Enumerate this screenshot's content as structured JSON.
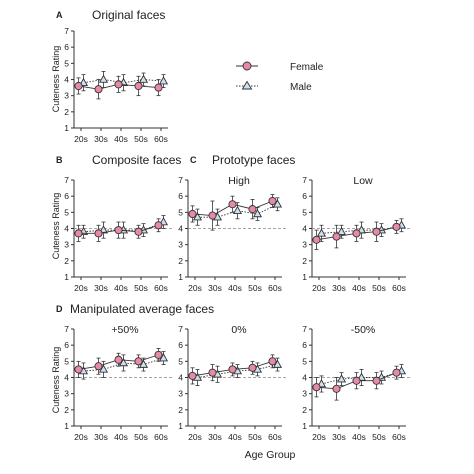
{
  "colors": {
    "female_fill": "#e88aa6",
    "female_stroke": "#333333",
    "male_fill": "#cfe0f3",
    "male_stroke": "#333333",
    "axis": "#333333",
    "reference_line": "#888888"
  },
  "icons": {
    "female_marker": "circle",
    "male_marker": "triangle"
  },
  "labels": {
    "ylabel": "Cuteness Rating",
    "xlabel": "Age Group"
  },
  "sections": {
    "A": {
      "letter": "A",
      "title": "Original faces"
    },
    "B": {
      "letter": "B",
      "title": "Composite faces"
    },
    "C": {
      "letter": "C",
      "title": "Prototype faces"
    },
    "D": {
      "letter": "D",
      "title": "Manipulated average faces"
    }
  },
  "legend": {
    "female": "Female",
    "male": "Male"
  },
  "chart_data": [
    {
      "id": "A",
      "type": "line",
      "title": "",
      "categories": [
        "20s",
        "30s",
        "40s",
        "50s",
        "60s"
      ],
      "ylim": [
        1,
        7
      ],
      "yticks": [
        1,
        2,
        3,
        4,
        5,
        6,
        7
      ],
      "reference_line": null,
      "series": [
        {
          "name": "Female",
          "values": [
            3.6,
            3.4,
            3.7,
            3.6,
            3.5
          ],
          "errors": [
            0.5,
            0.6,
            0.5,
            0.6,
            0.5
          ]
        },
        {
          "name": "Male",
          "values": [
            3.8,
            4.0,
            3.8,
            4.0,
            3.9
          ],
          "errors": [
            0.5,
            0.5,
            0.5,
            0.4,
            0.4
          ]
        }
      ]
    },
    {
      "id": "B",
      "type": "line",
      "title": "",
      "categories": [
        "20s",
        "30s",
        "40s",
        "50s",
        "60s"
      ],
      "ylim": [
        1,
        7
      ],
      "yticks": [
        1,
        2,
        3,
        4,
        5,
        6,
        7
      ],
      "reference_line": 4,
      "series": [
        {
          "name": "Female",
          "values": [
            3.7,
            3.7,
            3.9,
            3.8,
            4.2
          ],
          "errors": [
            0.5,
            0.5,
            0.5,
            0.4,
            0.4
          ]
        },
        {
          "name": "Male",
          "values": [
            3.8,
            3.9,
            3.9,
            3.9,
            4.4
          ],
          "errors": [
            0.4,
            0.5,
            0.5,
            0.4,
            0.4
          ]
        }
      ]
    },
    {
      "id": "C-high",
      "type": "line",
      "title": "High",
      "categories": [
        "20s",
        "30s",
        "40s",
        "50s",
        "60s"
      ],
      "ylim": [
        1,
        7
      ],
      "yticks": [
        1,
        2,
        3,
        4,
        5,
        6,
        7
      ],
      "reference_line": 4,
      "series": [
        {
          "name": "Female",
          "values": [
            4.9,
            4.8,
            5.5,
            5.2,
            5.7
          ],
          "errors": [
            0.5,
            0.9,
            0.5,
            0.6,
            0.4
          ]
        },
        {
          "name": "Male",
          "values": [
            4.7,
            4.7,
            5.1,
            4.9,
            5.5
          ],
          "errors": [
            0.5,
            0.5,
            0.5,
            0.4,
            0.4
          ]
        }
      ]
    },
    {
      "id": "C-low",
      "type": "line",
      "title": "Low",
      "categories": [
        "20s",
        "30s",
        "40s",
        "50s",
        "60s"
      ],
      "ylim": [
        1,
        7
      ],
      "yticks": [
        1,
        2,
        3,
        4,
        5,
        6,
        7
      ],
      "reference_line": 4,
      "series": [
        {
          "name": "Female",
          "values": [
            3.3,
            3.5,
            3.7,
            3.8,
            4.1
          ],
          "errors": [
            0.6,
            0.7,
            0.5,
            0.6,
            0.4
          ]
        },
        {
          "name": "Male",
          "values": [
            3.7,
            3.8,
            3.9,
            3.9,
            4.2
          ],
          "errors": [
            0.5,
            0.4,
            0.5,
            0.4,
            0.4
          ]
        }
      ]
    },
    {
      "id": "D-plus50",
      "type": "line",
      "title": "+50%",
      "categories": [
        "20s",
        "30s",
        "40s",
        "50s",
        "60s"
      ],
      "ylim": [
        1,
        7
      ],
      "yticks": [
        1,
        2,
        3,
        4,
        5,
        6,
        7
      ],
      "reference_line": 4,
      "series": [
        {
          "name": "Female",
          "values": [
            4.5,
            4.7,
            5.1,
            5.0,
            5.4
          ],
          "errors": [
            0.5,
            0.5,
            0.4,
            0.4,
            0.4
          ]
        },
        {
          "name": "Male",
          "values": [
            4.4,
            4.5,
            4.9,
            4.8,
            5.2
          ],
          "errors": [
            0.5,
            0.5,
            0.5,
            0.4,
            0.4
          ]
        }
      ]
    },
    {
      "id": "D-zero",
      "type": "line",
      "title": "0%",
      "categories": [
        "20s",
        "30s",
        "40s",
        "50s",
        "60s"
      ],
      "ylim": [
        1,
        7
      ],
      "yticks": [
        1,
        2,
        3,
        4,
        5,
        6,
        7
      ],
      "reference_line": 4,
      "series": [
        {
          "name": "Female",
          "values": [
            4.1,
            4.3,
            4.5,
            4.6,
            5.0
          ],
          "errors": [
            0.5,
            0.5,
            0.4,
            0.4,
            0.4
          ]
        },
        {
          "name": "Male",
          "values": [
            4.0,
            4.2,
            4.4,
            4.5,
            4.8
          ],
          "errors": [
            0.5,
            0.5,
            0.4,
            0.4,
            0.4
          ]
        }
      ]
    },
    {
      "id": "D-minus50",
      "type": "line",
      "title": "-50%",
      "categories": [
        "20s",
        "30s",
        "40s",
        "50s",
        "60s"
      ],
      "ylim": [
        1,
        7
      ],
      "yticks": [
        1,
        2,
        3,
        4,
        5,
        6,
        7
      ],
      "reference_line": 4,
      "series": [
        {
          "name": "Female",
          "values": [
            3.4,
            3.3,
            3.8,
            3.8,
            4.3
          ],
          "errors": [
            0.6,
            0.7,
            0.5,
            0.5,
            0.4
          ]
        },
        {
          "name": "Male",
          "values": [
            3.6,
            3.9,
            4.0,
            4.0,
            4.4
          ],
          "errors": [
            0.5,
            0.4,
            0.5,
            0.4,
            0.4
          ]
        }
      ]
    }
  ]
}
